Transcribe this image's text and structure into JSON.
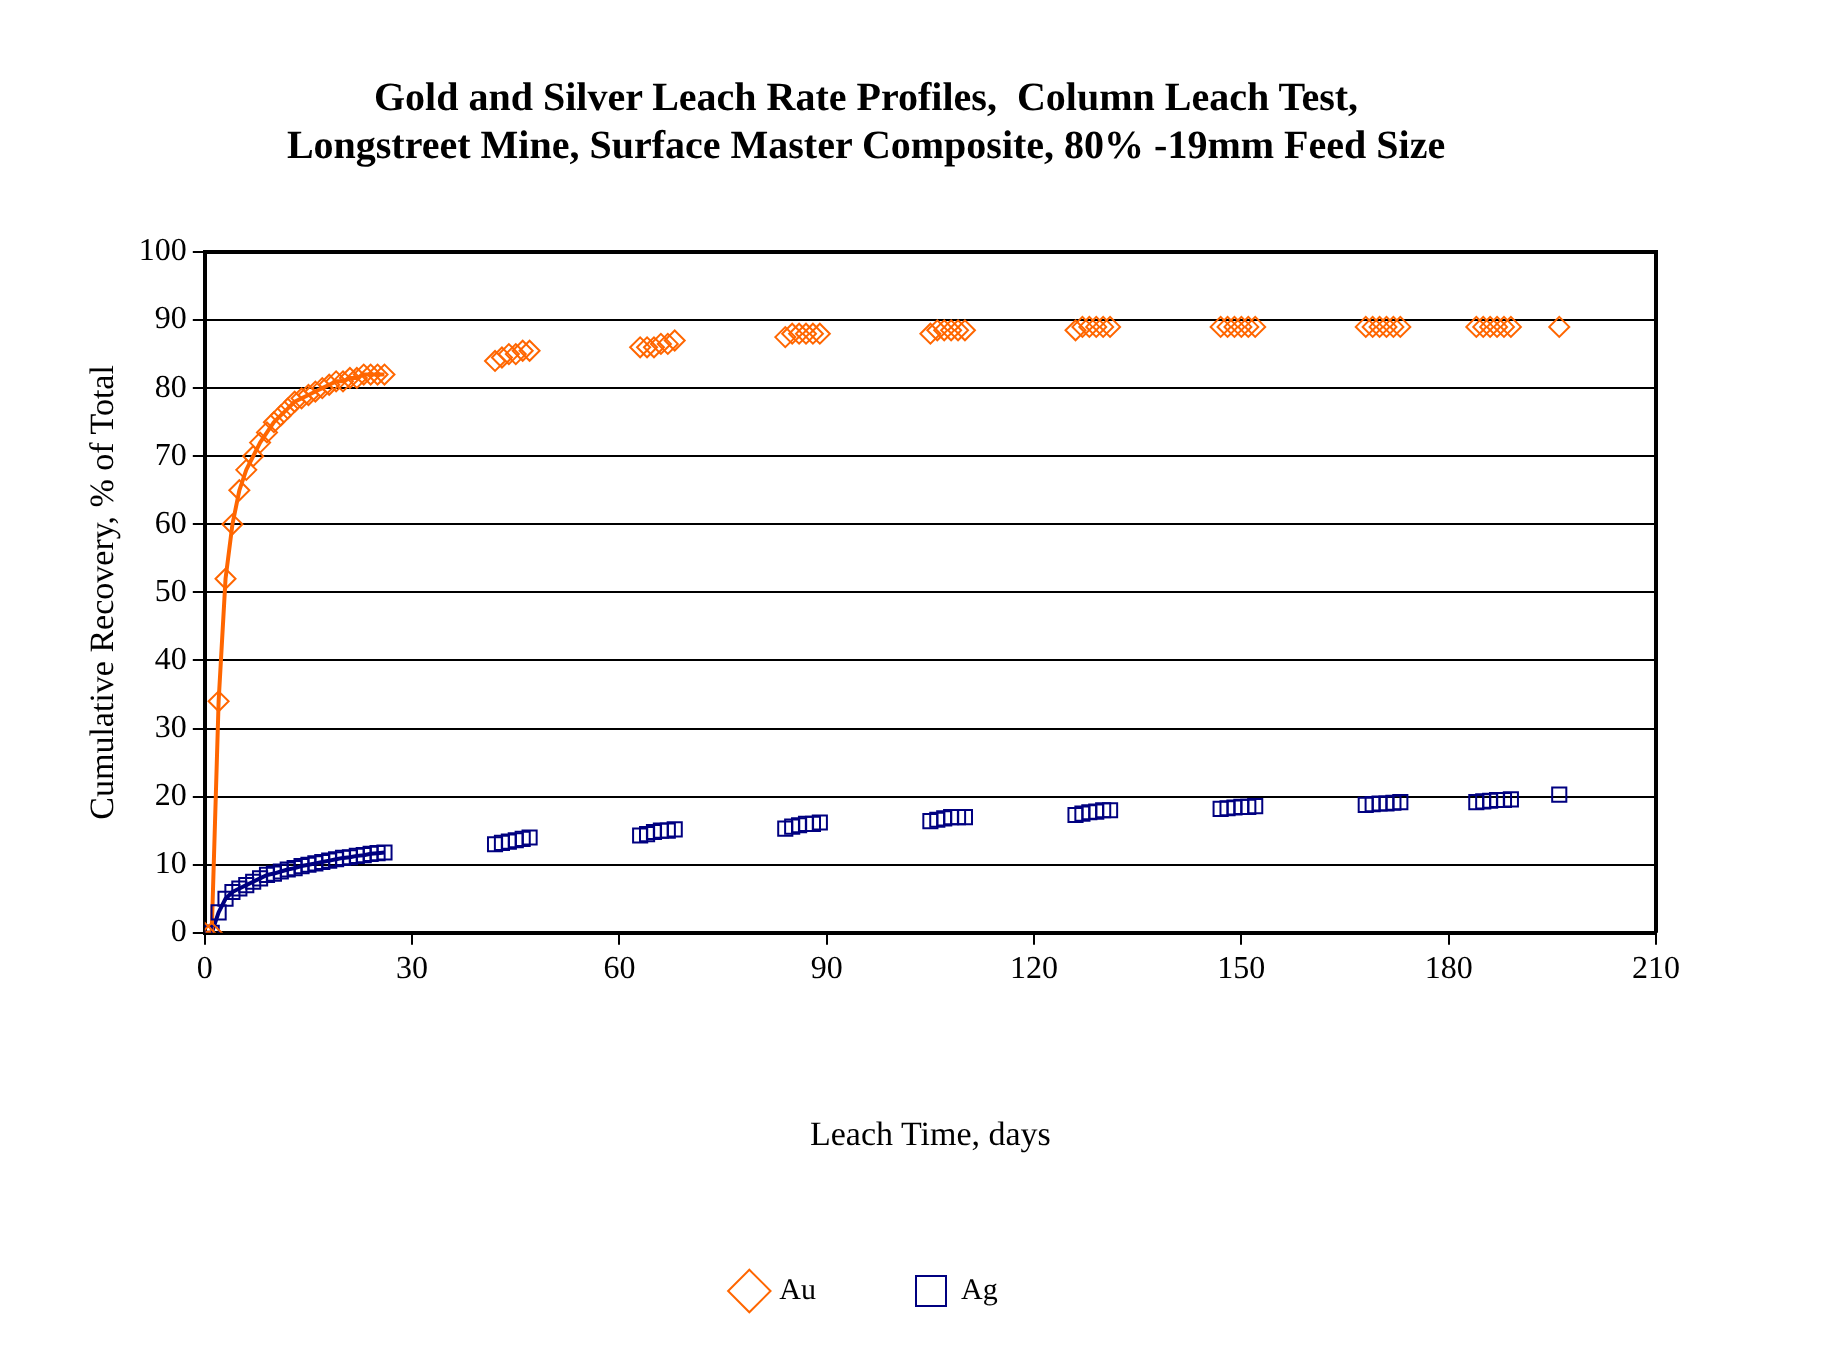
{
  "chart_data": {
    "type": "line",
    "title": "Gold and Silver Leach Rate Profiles,  Column Leach Test, Longstreet Mine, Surface Master Composite, 80% -19mm Feed Size",
    "xlabel": "Leach Time, days",
    "ylabel": "Cumulative Recovery, % of Total",
    "x": [
      0,
      1,
      2,
      3,
      4,
      5,
      6,
      7,
      8,
      9,
      10,
      11,
      12,
      13,
      14,
      15,
      16,
      17,
      18,
      19,
      20,
      21,
      22,
      23,
      24,
      25,
      26,
      42,
      43,
      44,
      45,
      46,
      47,
      63,
      64,
      65,
      66,
      67,
      68,
      84,
      85,
      86,
      87,
      88,
      89,
      105,
      106,
      107,
      108,
      109,
      110,
      126,
      127,
      128,
      129,
      130,
      131,
      147,
      148,
      149,
      150,
      151,
      152,
      168,
      169,
      170,
      171,
      172,
      173,
      184,
      185,
      186,
      187,
      188,
      189,
      196
    ],
    "xlim": [
      0,
      210
    ],
    "xticks": [
      0,
      30,
      60,
      90,
      120,
      150,
      180,
      210
    ],
    "ylim": [
      0,
      100
    ],
    "yticks": [
      0,
      10,
      20,
      30,
      40,
      50,
      60,
      70,
      80,
      90,
      100
    ],
    "grid": "y",
    "legend": "bottom",
    "line_style": "solid",
    "series": [
      {
        "name": "Au",
        "type": "scatter",
        "color": "#ff6600",
        "marker": "diamond",
        "values": [
          0,
          0,
          34,
          52,
          60,
          65,
          68,
          70,
          72,
          73.5,
          75,
          76,
          77,
          78,
          78.5,
          79,
          79.5,
          80,
          80.5,
          81,
          81,
          81.5,
          81.5,
          82,
          82,
          82,
          82,
          84,
          84.5,
          85,
          85,
          85.5,
          85.5,
          86,
          86,
          86,
          86.5,
          86.5,
          87,
          87.5,
          88,
          88,
          88,
          88,
          88,
          88,
          88.5,
          88.5,
          88.5,
          88.5,
          88.5,
          88.5,
          89,
          89,
          89,
          89,
          89,
          89,
          89,
          89,
          89,
          89,
          89,
          89,
          89,
          89,
          89,
          89,
          89,
          89,
          89,
          89,
          89,
          89,
          89,
          89
        ]
      },
      {
        "name": "Ag",
        "type": "scatter",
        "color": "#000080",
        "marker": "square",
        "values": [
          0,
          0,
          3,
          5,
          6,
          6.5,
          7,
          7.5,
          8,
          8.5,
          8.7,
          9,
          9.3,
          9.5,
          9.8,
          10,
          10.2,
          10.4,
          10.6,
          10.8,
          11,
          11.1,
          11.3,
          11.4,
          11.6,
          11.7,
          11.8,
          13,
          13.2,
          13.4,
          13.6,
          13.8,
          14,
          14.3,
          14.5,
          14.8,
          15,
          15,
          15.2,
          15.3,
          15.6,
          15.8,
          16,
          16,
          16.2,
          16.4,
          16.6,
          16.8,
          17,
          17,
          17,
          17.3,
          17.5,
          17.7,
          17.8,
          18,
          18,
          18.2,
          18.3,
          18.4,
          18.5,
          18.5,
          18.6,
          18.8,
          18.9,
          19,
          19,
          19.1,
          19.2,
          19.2,
          19.3,
          19.4,
          19.5,
          19.5,
          19.6,
          20.3
        ]
      },
      {
        "type": "line",
        "color": "#ff6600",
        "marker": "none",
        "x": [
          0,
          1,
          2,
          3,
          4,
          5,
          6,
          7,
          8,
          9,
          10,
          11,
          12,
          13,
          14,
          15,
          16,
          17,
          18,
          19,
          20,
          21,
          22,
          23,
          24,
          25,
          26
        ],
        "values": [
          0,
          0,
          34,
          52,
          60,
          65,
          68,
          70,
          72,
          73.5,
          75,
          76,
          77,
          78,
          78.5,
          79,
          79.5,
          80,
          80.5,
          81,
          81,
          81.5,
          81.5,
          82,
          82,
          82,
          82
        ]
      },
      {
        "type": "line",
        "color": "#000080",
        "marker": "none",
        "x": [
          0,
          1,
          2,
          3,
          4,
          5,
          6,
          7,
          8,
          9,
          10,
          11,
          12,
          13,
          14,
          15,
          16,
          17,
          18,
          19,
          20,
          21,
          22,
          23,
          24,
          25,
          26
        ],
        "values": [
          0,
          0,
          3,
          5,
          6,
          6.5,
          7,
          7.5,
          8,
          8.5,
          8.7,
          9,
          9.3,
          9.5,
          9.8,
          10,
          10.2,
          10.4,
          10.6,
          10.8,
          11,
          11.1,
          11.3,
          11.4,
          11.6,
          11.7,
          11.8
        ]
      }
    ]
  }
}
